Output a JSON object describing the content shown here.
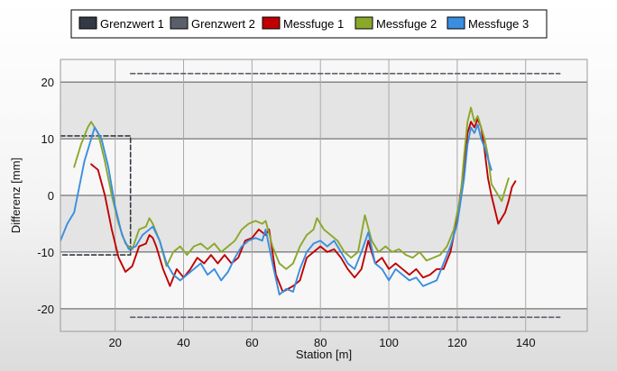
{
  "chart_data": {
    "type": "line",
    "xlabel": "Station [m]",
    "ylabel": "Differenz [mm]",
    "xlim": [
      4,
      158
    ],
    "ylim": [
      -24,
      24
    ],
    "x_ticks": [
      20,
      40,
      60,
      80,
      100,
      120,
      140
    ],
    "x_tick_labels": [
      "20",
      "40",
      "60",
      "80",
      "100",
      "120",
      "140"
    ],
    "y_ticks": [
      -20,
      -10,
      0,
      10,
      20
    ],
    "y_tick_labels": [
      "-20",
      "-10",
      "0",
      "10",
      "20"
    ],
    "grid": true,
    "legend_position": "top",
    "legend": [
      "Grenzwert 1",
      "Grenzwert 2",
      "Messfuge 1",
      "Messfuge 2",
      "Messfuge 3"
    ],
    "series": [
      {
        "name": "Grenzwert 1",
        "style": "dashed",
        "color": "#333a44",
        "points": [
          [
            4,
            10.5
          ],
          [
            24.5,
            10.5
          ],
          [
            24.5,
            -10.5
          ],
          [
            4,
            -10.5
          ]
        ]
      },
      {
        "name": "Grenzwert 2",
        "style": "dashed",
        "color": "#5a606a",
        "points": [
          [
            24.5,
            21.5
          ],
          [
            150,
            21.5
          ],
          [
            24.5,
            -21.5
          ],
          [
            150,
            -21.5
          ]
        ]
      },
      {
        "name": "Messfuge 1",
        "style": "solid",
        "color": "#c00000",
        "points": [
          [
            13,
            5.5
          ],
          [
            15,
            4.5
          ],
          [
            17,
            0
          ],
          [
            19,
            -6
          ],
          [
            21,
            -11
          ],
          [
            23,
            -13.5
          ],
          [
            25,
            -12.5
          ],
          [
            27,
            -9
          ],
          [
            29,
            -8.5
          ],
          [
            30,
            -7
          ],
          [
            31,
            -7.5
          ],
          [
            32,
            -9
          ],
          [
            34,
            -13
          ],
          [
            36,
            -16
          ],
          [
            38,
            -13
          ],
          [
            40,
            -14.5
          ],
          [
            42,
            -13
          ],
          [
            44,
            -11
          ],
          [
            46,
            -12
          ],
          [
            48,
            -10.5
          ],
          [
            50,
            -12
          ],
          [
            52,
            -10.5
          ],
          [
            54,
            -12
          ],
          [
            56,
            -11
          ],
          [
            58,
            -8
          ],
          [
            60,
            -7.5
          ],
          [
            62,
            -6
          ],
          [
            64,
            -7
          ],
          [
            65,
            -6
          ],
          [
            67,
            -14
          ],
          [
            69,
            -17
          ],
          [
            72,
            -16
          ],
          [
            74,
            -15
          ],
          [
            76,
            -11
          ],
          [
            78,
            -10
          ],
          [
            80,
            -9
          ],
          [
            82,
            -10
          ],
          [
            84,
            -9.5
          ],
          [
            86,
            -11
          ],
          [
            88,
            -13
          ],
          [
            90,
            -14.5
          ],
          [
            92,
            -13
          ],
          [
            94,
            -8
          ],
          [
            96,
            -12
          ],
          [
            98,
            -11
          ],
          [
            100,
            -13
          ],
          [
            102,
            -12
          ],
          [
            104,
            -13
          ],
          [
            106,
            -14
          ],
          [
            108,
            -13
          ],
          [
            110,
            -14.5
          ],
          [
            112,
            -14
          ],
          [
            114,
            -13
          ],
          [
            116,
            -13
          ],
          [
            118,
            -10
          ],
          [
            120,
            -4
          ],
          [
            122,
            5
          ],
          [
            123,
            11
          ],
          [
            124,
            13
          ],
          [
            125,
            12
          ],
          [
            126,
            13.5
          ],
          [
            127,
            12
          ],
          [
            128,
            8
          ],
          [
            129,
            3
          ],
          [
            130,
            0
          ],
          [
            132,
            -5
          ],
          [
            134,
            -3
          ],
          [
            135,
            -1
          ],
          [
            136,
            1.5
          ],
          [
            137,
            2.5
          ]
        ]
      },
      {
        "name": "Messfuge 2",
        "style": "solid",
        "color": "#8aa82a",
        "points": [
          [
            8,
            5
          ],
          [
            10,
            9
          ],
          [
            12,
            12
          ],
          [
            13,
            13
          ],
          [
            15,
            11
          ],
          [
            17,
            6
          ],
          [
            19,
            0
          ],
          [
            21,
            -5
          ],
          [
            23,
            -8.5
          ],
          [
            25,
            -9.5
          ],
          [
            27,
            -6
          ],
          [
            29,
            -5.5
          ],
          [
            30,
            -4
          ],
          [
            31,
            -5
          ],
          [
            33,
            -8
          ],
          [
            35,
            -12.5
          ],
          [
            37,
            -10
          ],
          [
            39,
            -9
          ],
          [
            41,
            -10.5
          ],
          [
            43,
            -9
          ],
          [
            45,
            -8.5
          ],
          [
            47,
            -9.5
          ],
          [
            49,
            -8.5
          ],
          [
            51,
            -10
          ],
          [
            53,
            -9
          ],
          [
            55,
            -8
          ],
          [
            57,
            -6
          ],
          [
            59,
            -5
          ],
          [
            61,
            -4.5
          ],
          [
            63,
            -5
          ],
          [
            64,
            -4.5
          ],
          [
            66,
            -9
          ],
          [
            68,
            -12
          ],
          [
            70,
            -13
          ],
          [
            72,
            -12
          ],
          [
            74,
            -9
          ],
          [
            76,
            -7
          ],
          [
            78,
            -6
          ],
          [
            79,
            -4
          ],
          [
            81,
            -6
          ],
          [
            83,
            -7
          ],
          [
            85,
            -8
          ],
          [
            87,
            -10
          ],
          [
            89,
            -11
          ],
          [
            91,
            -10
          ],
          [
            93,
            -3.5
          ],
          [
            95,
            -8
          ],
          [
            97,
            -10
          ],
          [
            99,
            -9
          ],
          [
            101,
            -10
          ],
          [
            103,
            -9.5
          ],
          [
            105,
            -10.5
          ],
          [
            107,
            -11
          ],
          [
            109,
            -10
          ],
          [
            111,
            -11.5
          ],
          [
            113,
            -11
          ],
          [
            115,
            -10.5
          ],
          [
            117,
            -9
          ],
          [
            119,
            -6
          ],
          [
            121,
            0
          ],
          [
            122,
            7
          ],
          [
            123,
            13
          ],
          [
            124,
            15.5
          ],
          [
            125,
            13
          ],
          [
            126,
            14
          ],
          [
            127,
            12
          ],
          [
            128,
            10
          ],
          [
            129,
            7
          ],
          [
            130,
            2
          ],
          [
            132,
            0
          ],
          [
            133,
            -1
          ],
          [
            134,
            1
          ],
          [
            135,
            3
          ]
        ]
      },
      {
        "name": "Messfuge 3",
        "style": "solid",
        "color": "#3a8ee0",
        "points": [
          [
            4,
            -8
          ],
          [
            6,
            -5
          ],
          [
            8,
            -3
          ],
          [
            9,
            0
          ],
          [
            11,
            6
          ],
          [
            13,
            10
          ],
          [
            14,
            12
          ],
          [
            16,
            10
          ],
          [
            18,
            5
          ],
          [
            20,
            -2
          ],
          [
            22,
            -7
          ],
          [
            24,
            -9.5
          ],
          [
            26,
            -9
          ],
          [
            28,
            -7
          ],
          [
            30,
            -6
          ],
          [
            31,
            -5.5
          ],
          [
            33,
            -8
          ],
          [
            35,
            -12
          ],
          [
            37,
            -14
          ],
          [
            39,
            -15
          ],
          [
            41,
            -14
          ],
          [
            43,
            -13
          ],
          [
            45,
            -12
          ],
          [
            47,
            -14
          ],
          [
            49,
            -13
          ],
          [
            51,
            -15
          ],
          [
            53,
            -13.5
          ],
          [
            55,
            -11
          ],
          [
            57,
            -9
          ],
          [
            59,
            -8
          ],
          [
            61,
            -7.5
          ],
          [
            63,
            -8
          ],
          [
            64,
            -6
          ],
          [
            66,
            -12
          ],
          [
            68,
            -17.5
          ],
          [
            70,
            -16.5
          ],
          [
            72,
            -17
          ],
          [
            74,
            -13
          ],
          [
            76,
            -10
          ],
          [
            78,
            -8.5
          ],
          [
            80,
            -8
          ],
          [
            82,
            -9
          ],
          [
            84,
            -8
          ],
          [
            86,
            -10
          ],
          [
            88,
            -12
          ],
          [
            90,
            -13
          ],
          [
            92,
            -10
          ],
          [
            94,
            -6.5
          ],
          [
            96,
            -12
          ],
          [
            98,
            -13
          ],
          [
            100,
            -15
          ],
          [
            102,
            -13
          ],
          [
            104,
            -14
          ],
          [
            106,
            -15
          ],
          [
            108,
            -14.5
          ],
          [
            110,
            -16
          ],
          [
            112,
            -15.5
          ],
          [
            114,
            -15
          ],
          [
            116,
            -12
          ],
          [
            118,
            -9
          ],
          [
            120,
            -5
          ],
          [
            122,
            3
          ],
          [
            123,
            9
          ],
          [
            124,
            12
          ],
          [
            125,
            11
          ],
          [
            126,
            12.5
          ],
          [
            127,
            10
          ],
          [
            128,
            8.5
          ],
          [
            129,
            6.5
          ],
          [
            130,
            4.5
          ]
        ]
      }
    ]
  }
}
